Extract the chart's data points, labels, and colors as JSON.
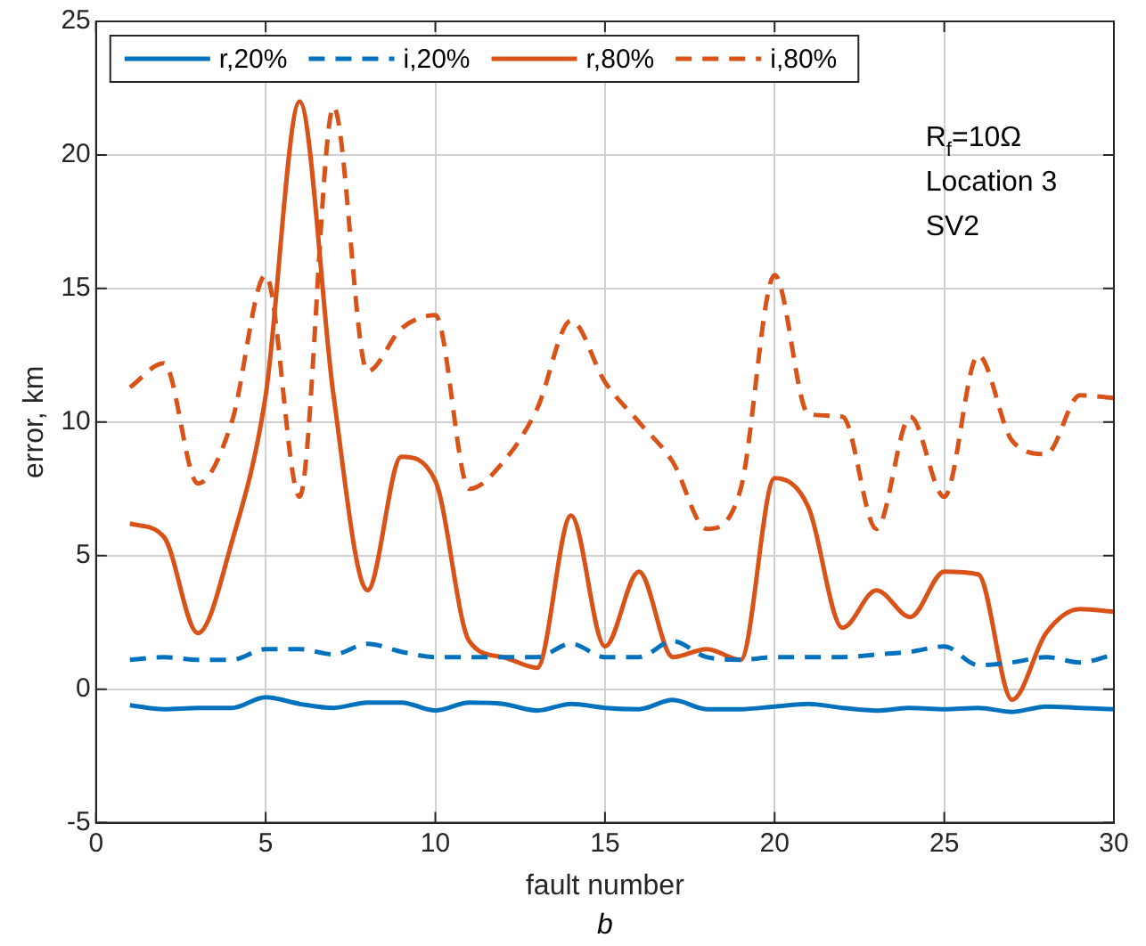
{
  "chart_data": {
    "type": "line",
    "xlabel": "fault number",
    "ylabel": "error, km",
    "annotations": [
      "R$_{f}$=10Ω",
      "Location 3",
      "SV2",
      "b"
    ],
    "x": [
      1,
      2,
      3,
      4,
      5,
      6,
      7,
      8,
      9,
      10,
      11,
      12,
      13,
      14,
      15,
      16,
      17,
      18,
      19,
      20,
      21,
      22,
      23,
      24,
      25,
      26,
      27,
      28,
      29,
      30
    ],
    "series": [
      {
        "name": "r,20%",
        "color": "#0072bd",
        "line_style": "solid",
        "values": [
          -0.6,
          -0.75,
          -0.7,
          -0.7,
          -0.3,
          -0.55,
          -0.7,
          -0.5,
          -0.5,
          -0.8,
          -0.5,
          -0.55,
          -0.8,
          -0.55,
          -0.7,
          -0.75,
          -0.4,
          -0.75,
          -0.75,
          -0.65,
          -0.55,
          -0.7,
          -0.8,
          -0.7,
          -0.75,
          -0.7,
          -0.85,
          -0.65,
          -0.7,
          -0.75
        ]
      },
      {
        "name": "i,20%",
        "color": "#0072bd",
        "line_style": "dashed",
        "values": [
          1.1,
          1.2,
          1.1,
          1.1,
          1.5,
          1.5,
          1.3,
          1.7,
          1.4,
          1.2,
          1.2,
          1.2,
          1.2,
          1.7,
          1.2,
          1.2,
          1.8,
          1.2,
          1.1,
          1.2,
          1.2,
          1.2,
          1.3,
          1.4,
          1.6,
          0.9,
          1.0,
          1.2,
          1.0,
          1.3
        ]
      },
      {
        "name": "r,80%",
        "color": "#d95319",
        "line_style": "solid",
        "values": [
          6.2,
          5.7,
          2.1,
          5.5,
          11,
          22,
          11,
          3.7,
          8.7,
          7.8,
          1.8,
          1.2,
          0.8,
          6.5,
          1.6,
          4.4,
          1.2,
          1.5,
          1.1,
          7.9,
          6.8,
          2.3,
          3.7,
          2.7,
          4.4,
          4.3,
          -0.4,
          2.1,
          3.0,
          2.9
        ]
      },
      {
        "name": "i,80%",
        "color": "#d95319",
        "line_style": "dashed",
        "values": [
          11.3,
          12.2,
          7.7,
          10,
          15.5,
          7.2,
          21.8,
          11.9,
          13.5,
          14,
          7.5,
          8.5,
          10.5,
          13.8,
          11.5,
          10,
          8.5,
          6,
          7.5,
          15.5,
          10.3,
          10.2,
          6.0,
          10.2,
          7.2,
          12.5,
          9.3,
          8.8,
          11,
          10.9
        ]
      }
    ],
    "xlim": [
      0,
      30
    ],
    "xticks": [
      0,
      5,
      10,
      15,
      20,
      25,
      30
    ],
    "ylim": [
      -5,
      25
    ],
    "yticks": [
      -5,
      0,
      5,
      10,
      15,
      20,
      25
    ],
    "grid": true,
    "legend": "top left",
    "marker": "none"
  }
}
